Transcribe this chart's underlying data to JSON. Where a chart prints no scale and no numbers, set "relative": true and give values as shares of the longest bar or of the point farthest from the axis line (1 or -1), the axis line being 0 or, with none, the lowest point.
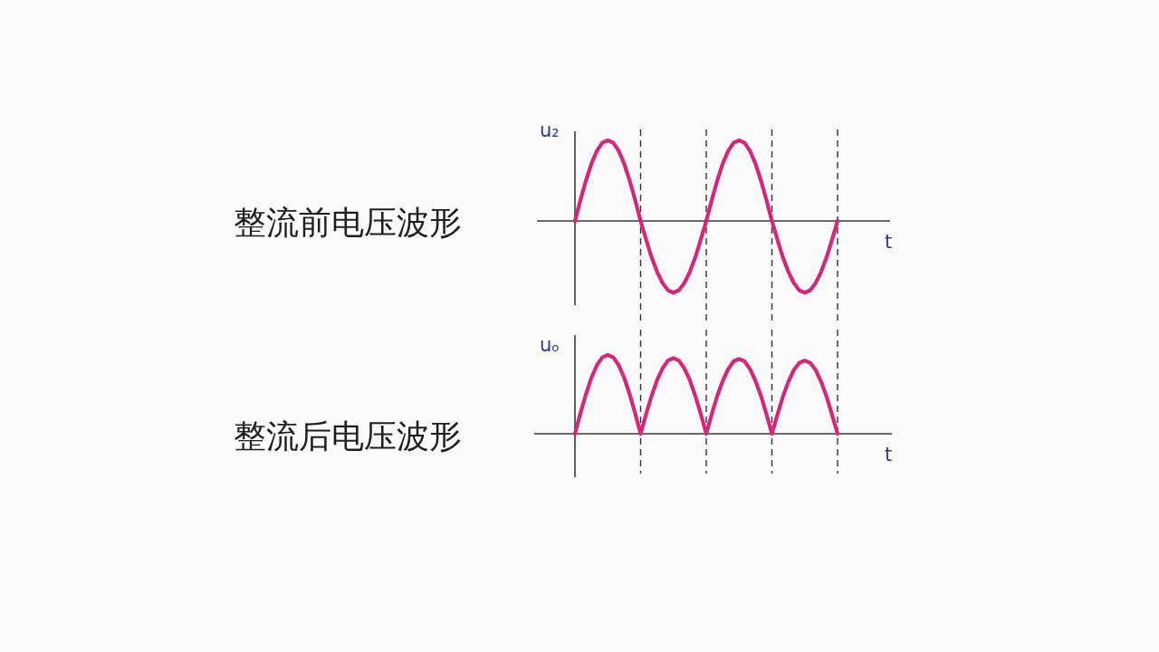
{
  "chart_data": [
    {
      "type": "line",
      "title": "整流前电压波形",
      "ylabel": "u₂",
      "xlabel": "t",
      "relative": true,
      "grid": "x",
      "categories": [
        null,
        null,
        null,
        null,
        null,
        null,
        null,
        null,
        null,
        null,
        null,
        null,
        null,
        null,
        null,
        null,
        null,
        null,
        null,
        null,
        null,
        null,
        null,
        null,
        null,
        null,
        null,
        null,
        null,
        null,
        null,
        null,
        null,
        null,
        null,
        null,
        null,
        null,
        null,
        null,
        null,
        null,
        null,
        null,
        null,
        null,
        null,
        null,
        null
      ],
      "series": [
        {
          "color": "#d6267a",
          "values": [
            0,
            0.26,
            0.5,
            0.71,
            0.87,
            0.97,
            1,
            0.97,
            0.87,
            0.71,
            0.5,
            0.26,
            0,
            -0.23,
            -0.45,
            -0.63,
            -0.77,
            -0.86,
            -0.89,
            -0.86,
            -0.77,
            -0.63,
            -0.45,
            -0.23,
            0,
            0.26,
            0.5,
            0.71,
            0.87,
            0.97,
            1,
            0.97,
            0.87,
            0.71,
            0.5,
            0.26,
            0,
            -0.23,
            -0.45,
            -0.63,
            -0.77,
            -0.86,
            -0.89,
            -0.86,
            -0.77,
            -0.63,
            -0.45,
            -0.23,
            0
          ]
        }
      ]
    },
    {
      "type": "line",
      "title": "整流后电压波形",
      "ylabel": "uₒ",
      "xlabel": "t",
      "relative": true,
      "grid": "x",
      "categories": [
        null,
        null,
        null,
        null,
        null,
        null,
        null,
        null,
        null,
        null,
        null,
        null,
        null,
        null,
        null,
        null,
        null,
        null,
        null,
        null,
        null,
        null,
        null,
        null,
        null,
        null,
        null,
        null,
        null,
        null,
        null,
        null,
        null,
        null,
        null,
        null,
        null,
        null,
        null,
        null,
        null,
        null,
        null,
        null,
        null,
        null,
        null,
        null,
        null
      ],
      "series": [
        {
          "color": "#d6267a",
          "values": [
            0,
            0.26,
            0.5,
            0.71,
            0.87,
            0.97,
            1,
            0.97,
            0.87,
            0.71,
            0.5,
            0.26,
            0,
            0.25,
            0.48,
            0.68,
            0.83,
            0.93,
            0.96,
            0.93,
            0.83,
            0.68,
            0.48,
            0.25,
            0,
            0.25,
            0.48,
            0.67,
            0.82,
            0.92,
            0.95,
            0.92,
            0.82,
            0.67,
            0.48,
            0.25,
            0,
            0.24,
            0.47,
            0.66,
            0.81,
            0.9,
            0.93,
            0.9,
            0.81,
            0.66,
            0.47,
            0.24,
            0
          ]
        }
      ]
    }
  ]
}
